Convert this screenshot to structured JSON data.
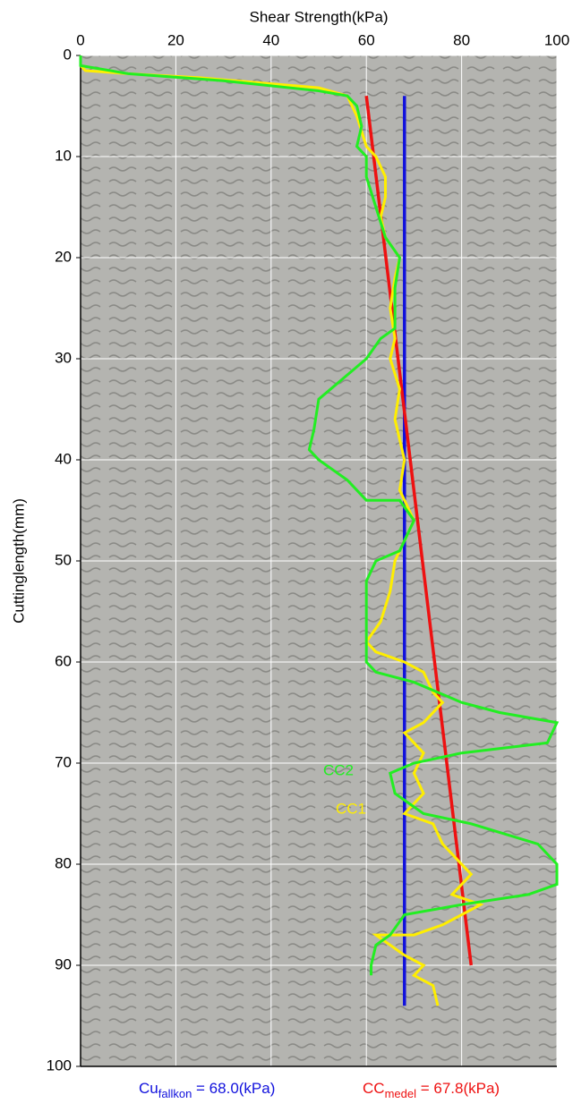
{
  "chart_data": {
    "type": "line",
    "title": "Shear Strength(kPa)",
    "y_label": "Cuttinglength(mm)",
    "xlim": [
      0,
      100
    ],
    "xticks": [
      0,
      20,
      40,
      60,
      80,
      100
    ],
    "ylim": [
      0,
      100
    ],
    "yticks": [
      0,
      10,
      20,
      30,
      40,
      50,
      60,
      70,
      80,
      90,
      100
    ],
    "grid": true,
    "series": [
      {
        "name": "CC2",
        "color": "#22ee22",
        "x": [
          0,
          0,
          10,
          30,
          50,
          56,
          58,
          59,
          58,
          60,
          60,
          62,
          64,
          67,
          66,
          66,
          63,
          60,
          55,
          50,
          49,
          48,
          50,
          56,
          60,
          67,
          70,
          67,
          62,
          60,
          60,
          60,
          62,
          70,
          80,
          88,
          100,
          98,
          80,
          70,
          65,
          66,
          72,
          82,
          96,
          100,
          100,
          94,
          80,
          68,
          65,
          62,
          61,
          61
        ],
        "y": [
          0,
          1,
          1.8,
          2.5,
          3.5,
          4,
          5,
          7,
          9,
          10,
          12,
          15,
          18,
          20,
          23,
          27,
          28,
          30,
          32,
          34,
          37,
          39,
          40,
          42,
          44,
          44,
          46,
          49,
          50,
          52,
          56,
          60,
          61,
          62,
          64,
          65,
          66,
          68,
          69,
          70,
          71,
          73,
          75,
          76,
          78,
          80,
          82,
          83,
          84,
          85,
          87,
          88,
          90,
          91
        ]
      },
      {
        "name": "CC1",
        "color": "#ffee00",
        "x": [
          0,
          0,
          1,
          10,
          25,
          40,
          50,
          56,
          58,
          60,
          62,
          64,
          64,
          63,
          64,
          67,
          66,
          65,
          66,
          65,
          67,
          66,
          67,
          68,
          67,
          70,
          68,
          66,
          65,
          63,
          60,
          62,
          68,
          72,
          74,
          76,
          72,
          68,
          72,
          70,
          72,
          68,
          74,
          76,
          80,
          82,
          78,
          84,
          76,
          70,
          62,
          68,
          72,
          70,
          74,
          75
        ],
        "y": [
          0,
          1,
          1.5,
          1.8,
          2.2,
          2.8,
          3.2,
          4,
          6,
          9,
          10,
          12,
          14,
          16,
          18,
          20,
          22,
          25,
          28,
          30,
          33,
          36,
          38,
          40,
          43,
          46,
          48,
          50,
          53,
          56,
          58,
          59,
          60,
          61,
          63,
          64,
          66,
          67,
          69,
          71,
          73,
          75,
          76,
          78,
          80,
          81,
          83,
          84,
          86,
          87,
          87,
          89,
          90,
          91,
          92,
          94
        ]
      },
      {
        "name": "CC medel",
        "color": "#ee1111",
        "x": [
          60,
          82
        ],
        "y": [
          4,
          90
        ]
      },
      {
        "name": "Cu fallkon",
        "color": "#1111dd",
        "x": [
          68,
          68
        ],
        "y": [
          4,
          94
        ]
      }
    ],
    "annotations": [
      {
        "main": "Cu",
        "sub": "fallkon",
        "rest": " = 68.0(kPa)",
        "color": "#1111dd"
      },
      {
        "main": "CC",
        "sub": "medel",
        "rest": " = 67.8(kPa)",
        "color": "#ee1111"
      }
    ]
  }
}
